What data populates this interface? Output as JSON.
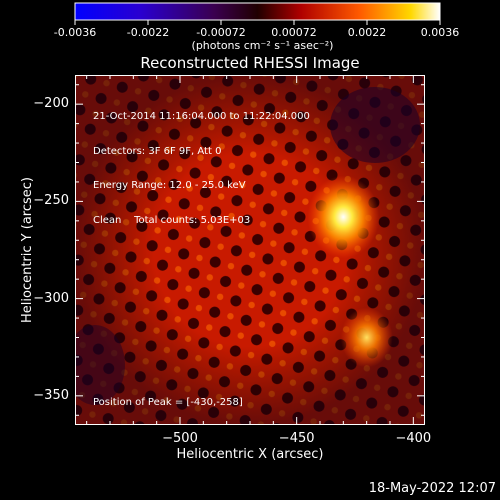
{
  "colorbar": {
    "ticks": [
      "-0.0036",
      "-0.0022",
      "-0.00072",
      "0.00072",
      "0.0022",
      "0.0036"
    ],
    "units_label": "(photons cm⁻² s⁻¹ asec⁻²)"
  },
  "chart_data": {
    "type": "heatmap",
    "title": "Reconstructed RHESSI Image",
    "xlabel": "Heliocentric X (arcsec)",
    "ylabel": "Heliocentric Y (arcsec)",
    "xlim": [
      -545,
      -395
    ],
    "ylim": [
      -365,
      -185
    ],
    "x_ticks": [
      -500,
      -450,
      -400
    ],
    "y_ticks": [
      -200,
      -250,
      -300,
      -350
    ],
    "colorbar_range": [
      -0.0036,
      0.0036
    ],
    "colormap": "blue-purple-red-yellow-white",
    "sources": [
      {
        "x": -430,
        "y": -258,
        "relative_intensity": 1.0
      },
      {
        "x": -420,
        "y": -320,
        "relative_intensity": 0.55
      }
    ],
    "peak_position": [
      -430,
      -258
    ]
  },
  "annotations": {
    "time_range": "21-Oct-2014 11:16:04.000 to 11:22:04.000",
    "detectors": "Detectors: 3F 6F 9F, Att 0",
    "energy": "Energy Range: 12.0 - 25.0 keV",
    "clean": "Clean    Total counts: 5.03E+03",
    "peak": "Position of Peak = [-430,-258]"
  },
  "footer": {
    "date": "18-May-2022 12:07"
  },
  "colors": {
    "background": "#000000",
    "text": "#ffffff"
  }
}
